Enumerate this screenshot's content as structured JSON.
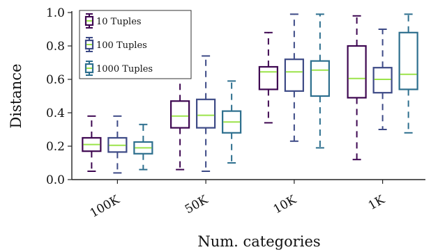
{
  "chart_data": {
    "type": "box",
    "title": "",
    "xlabel": "Num. categories",
    "ylabel": "Distance",
    "ylim": [
      0.0,
      1.0
    ],
    "yticks": [
      0.0,
      0.2,
      0.4,
      0.6,
      0.8,
      1.0
    ],
    "ytick_labels": [
      "0.0",
      "0.2",
      "0.4",
      "0.6",
      "0.8",
      "1.0"
    ],
    "categories": [
      "100K",
      "50K",
      "10K",
      "1K"
    ],
    "legend_position": "top-left",
    "grid": false,
    "series": [
      {
        "name": "10 Tuples",
        "color": "#3e0751",
        "boxes": [
          {
            "whislo": 0.05,
            "q1": 0.17,
            "med": 0.21,
            "q3": 0.25,
            "whishi": 0.38
          },
          {
            "whislo": 0.06,
            "q1": 0.31,
            "med": 0.38,
            "q3": 0.47,
            "whishi": 0.72
          },
          {
            "whislo": 0.34,
            "q1": 0.54,
            "med": 0.645,
            "q3": 0.675,
            "whishi": 0.88
          },
          {
            "whislo": 0.12,
            "q1": 0.49,
            "med": 0.605,
            "q3": 0.8,
            "whishi": 0.98
          }
        ]
      },
      {
        "name": "100 Tuples",
        "color": "#3d4a86",
        "boxes": [
          {
            "whislo": 0.04,
            "q1": 0.165,
            "med": 0.205,
            "q3": 0.25,
            "whishi": 0.38
          },
          {
            "whislo": 0.05,
            "q1": 0.31,
            "med": 0.385,
            "q3": 0.48,
            "whishi": 0.74
          },
          {
            "whislo": 0.23,
            "q1": 0.53,
            "med": 0.645,
            "q3": 0.72,
            "whishi": 0.99
          },
          {
            "whislo": 0.3,
            "q1": 0.52,
            "med": 0.6,
            "q3": 0.67,
            "whishi": 0.9
          }
        ]
      },
      {
        "name": "1000 Tuples",
        "color": "#2d6f8e",
        "boxes": [
          {
            "whislo": 0.06,
            "q1": 0.155,
            "med": 0.19,
            "q3": 0.225,
            "whishi": 0.33
          },
          {
            "whislo": 0.1,
            "q1": 0.28,
            "med": 0.345,
            "q3": 0.41,
            "whishi": 0.59
          },
          {
            "whislo": 0.19,
            "q1": 0.5,
            "med": 0.655,
            "q3": 0.71,
            "whishi": 0.99
          },
          {
            "whislo": 0.28,
            "q1": 0.54,
            "med": 0.63,
            "q3": 0.88,
            "whishi": 0.99
          }
        ]
      }
    ],
    "median_color": "#9be34a"
  }
}
